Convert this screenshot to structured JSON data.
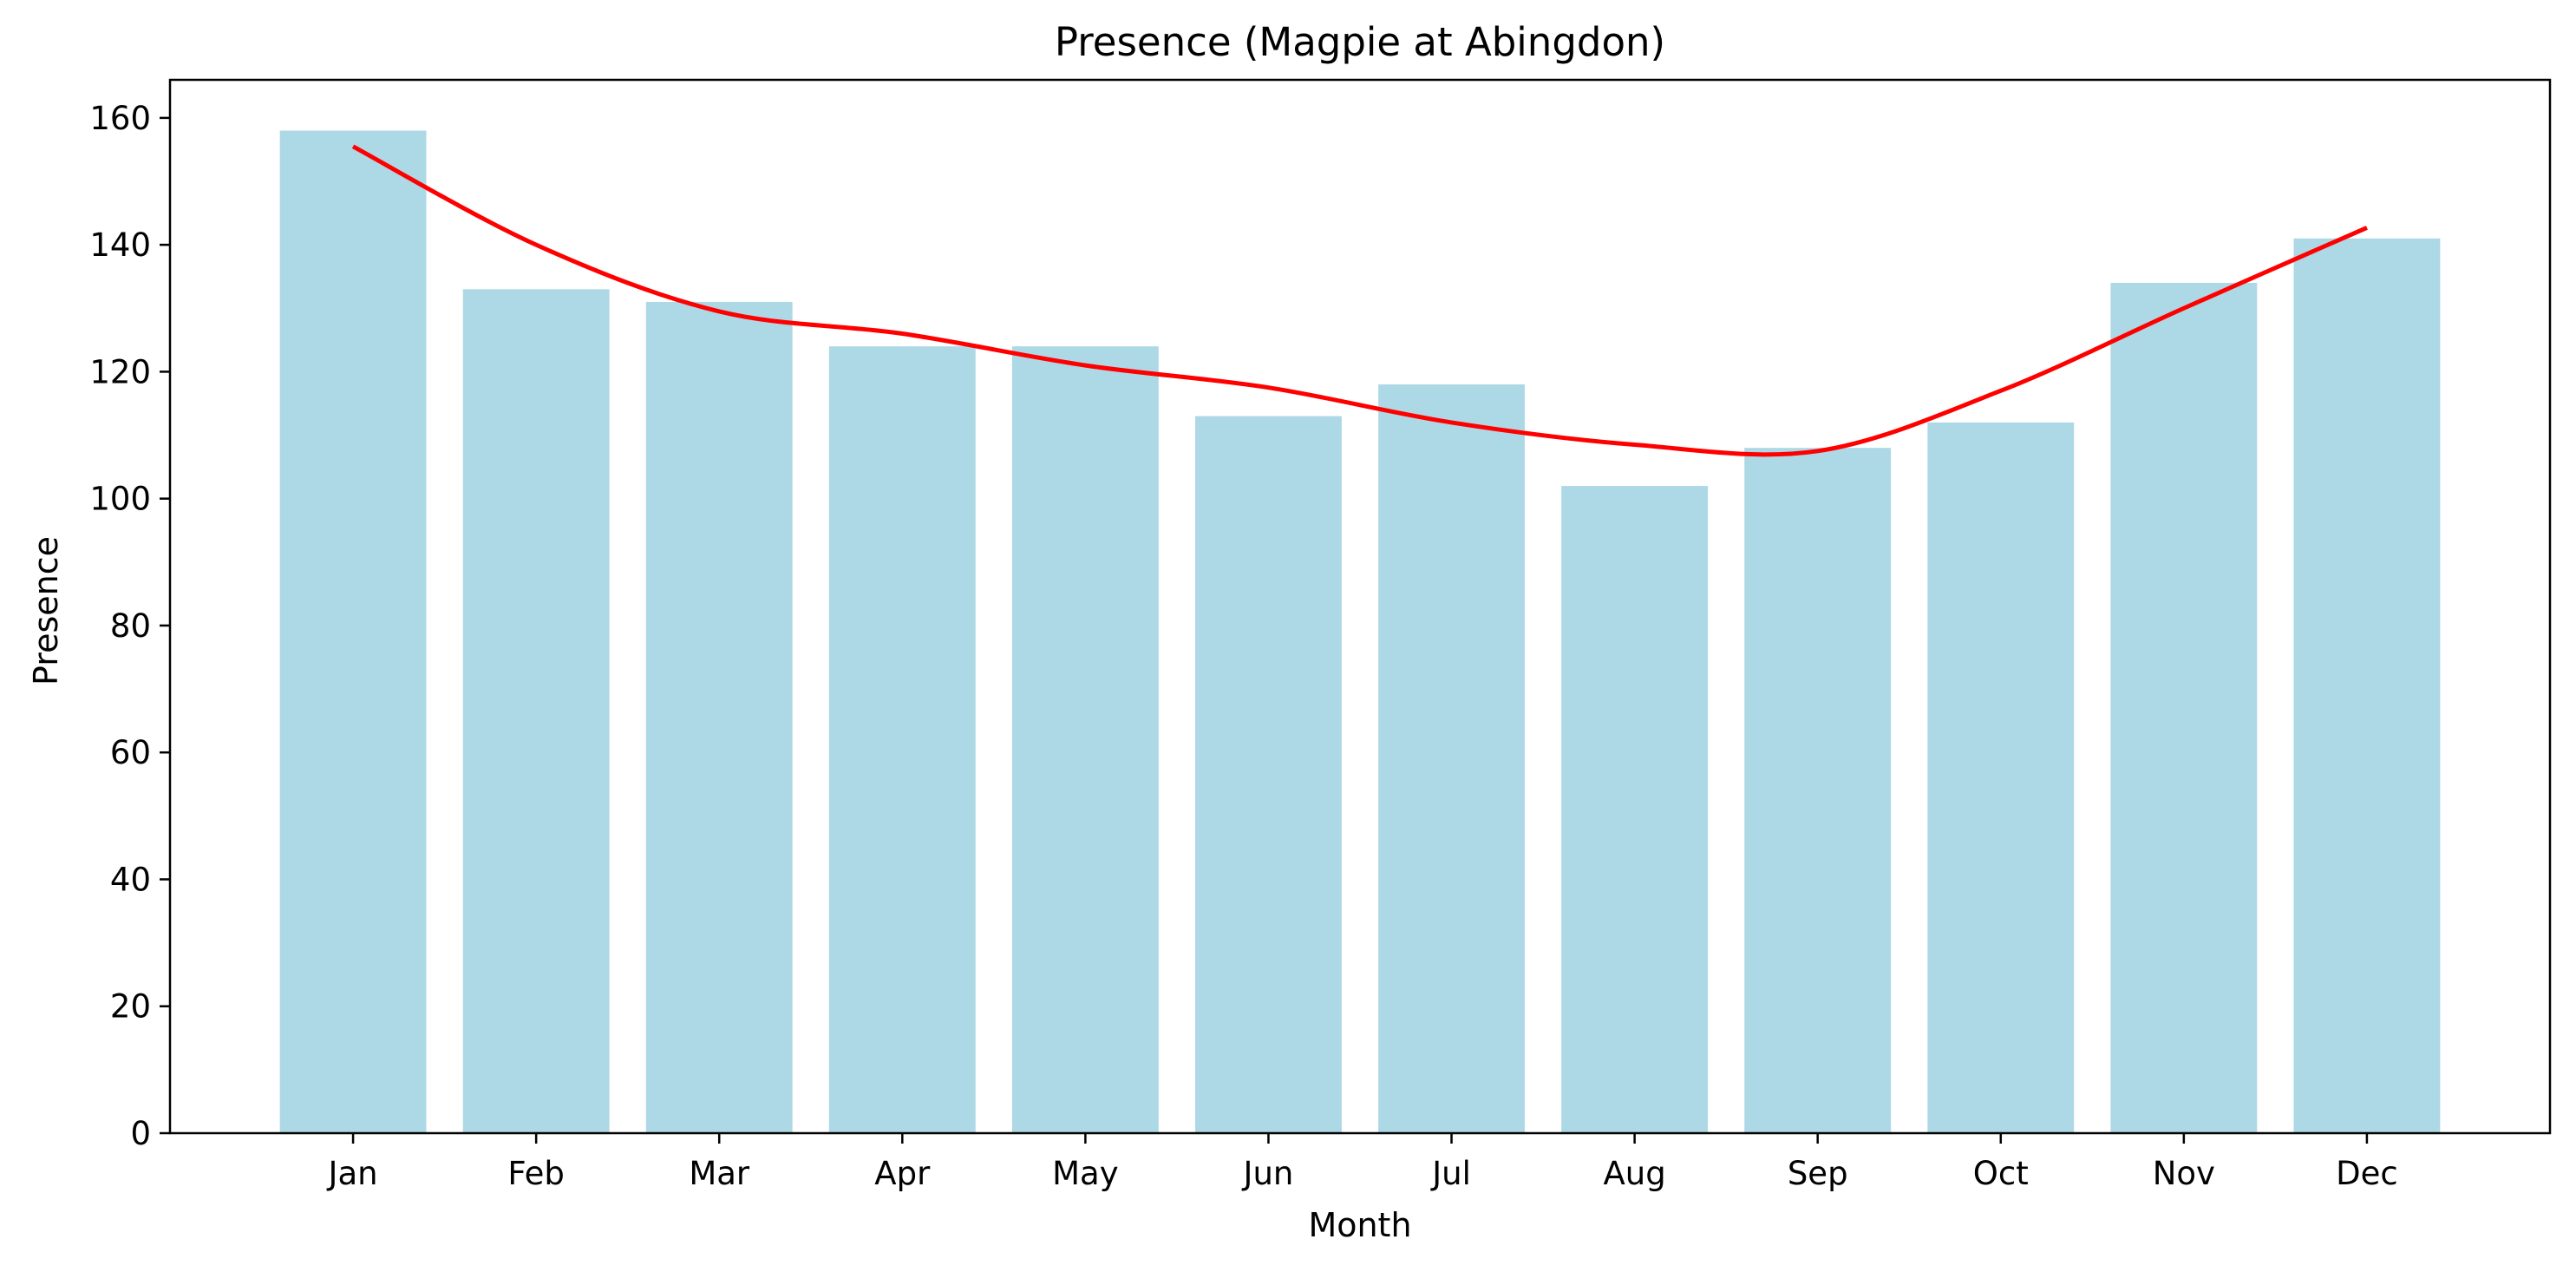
{
  "chart_data": {
    "type": "bar",
    "title": "Presence (Magpie at Abingdon)",
    "xlabel": "Month",
    "ylabel": "Presence",
    "categories": [
      "Jan",
      "Feb",
      "Mar",
      "Apr",
      "May",
      "Jun",
      "Jul",
      "Aug",
      "Sep",
      "Oct",
      "Nov",
      "Dec"
    ],
    "series": [
      {
        "type": "bar",
        "values": [
          158,
          133,
          131,
          124,
          124,
          113,
          118,
          102,
          108,
          112,
          134,
          141
        ],
        "color": "#add8e6"
      },
      {
        "type": "line",
        "values": [
          155.5,
          140.0,
          129.5,
          126.0,
          121.0,
          117.5,
          112.0,
          108.5,
          107.5,
          117.0,
          130.0,
          142.7
        ],
        "color": "#ff0000"
      }
    ],
    "ylim": [
      0,
      166
    ],
    "yticks": [
      0,
      20,
      40,
      60,
      80,
      100,
      120,
      140,
      160
    ],
    "grid": false,
    "legend": "none"
  }
}
